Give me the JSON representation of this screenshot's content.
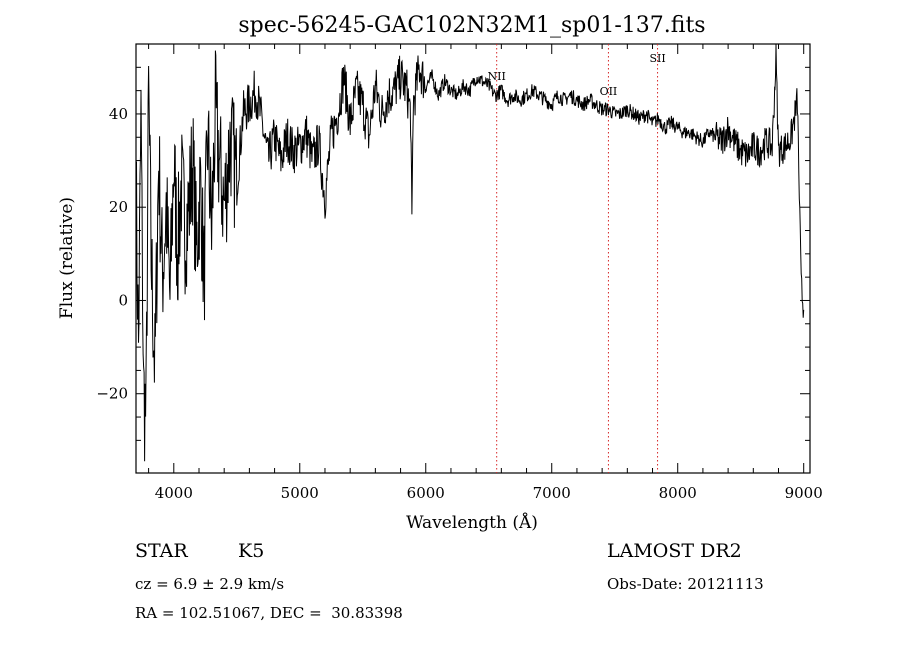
{
  "chart_data": {
    "type": "line",
    "title": "spec-56245-GAC102N32M1_sp01-137.fits",
    "xlabel": "Wavelength (Å)",
    "ylabel": "Flux (relative)",
    "xlim": [
      3700,
      9050
    ],
    "ylim": [
      -37,
      55
    ],
    "x_ticks": [
      4000,
      5000,
      6000,
      7000,
      8000,
      9000
    ],
    "x_tick_labels": [
      "4000",
      "5000",
      "6000",
      "7000",
      "8000",
      "9000"
    ],
    "y_ticks": [
      -20,
      0,
      20,
      40
    ],
    "y_tick_labels": [
      "−20",
      "0",
      "20",
      "40"
    ],
    "grid": false,
    "line_color": "#000000",
    "marker_color": "#d62728",
    "lines": [
      {
        "label": "NII",
        "x": 6563
      },
      {
        "label": "OII",
        "x": 7450
      },
      {
        "label": "SII",
        "x": 7840
      }
    ],
    "series": [
      {
        "x": [
          3700,
          3720,
          3740,
          3760,
          3780,
          3800,
          3820,
          3850,
          3880,
          3910,
          3940,
          3970,
          4000,
          4030,
          4060,
          4090,
          4120,
          4150,
          4180,
          4210,
          4240,
          4270,
          4300,
          4330,
          4360,
          4400,
          4450,
          4500,
          4550,
          4600,
          4650,
          4700,
          4750,
          4800,
          4850,
          4900,
          4950,
          5000,
          5050,
          5100,
          5150,
          5200,
          5250,
          5300,
          5350,
          5400,
          5450,
          5500,
          5550,
          5600,
          5650,
          5700,
          5750,
          5800,
          5850,
          5880,
          5890,
          5900,
          5950,
          6000,
          6050,
          6100,
          6150,
          6200,
          6250,
          6300,
          6350,
          6400,
          6450,
          6500,
          6550,
          6600,
          6650,
          6700,
          6750,
          6800,
          6850,
          6900,
          6950,
          7000,
          7050,
          7100,
          7150,
          7200,
          7250,
          7300,
          7350,
          7400,
          7450,
          7500,
          7550,
          7600,
          7650,
          7700,
          7750,
          7800,
          7850,
          7900,
          7950,
          8000,
          8050,
          8100,
          8150,
          8200,
          8250,
          8300,
          8350,
          8400,
          8450,
          8500,
          8550,
          8600,
          8650,
          8700,
          8750,
          8780,
          8800,
          8850,
          8900,
          8950,
          8980,
          9000
        ],
        "y": [
          25,
          -10,
          40,
          -20,
          -25,
          45,
          10,
          -15,
          30,
          5,
          20,
          0,
          30,
          10,
          25,
          15,
          20,
          30,
          10,
          25,
          5,
          35,
          15,
          40,
          30,
          20,
          35,
          25,
          40,
          42,
          45,
          38,
          30,
          35,
          30,
          35,
          32,
          33,
          36,
          30,
          34,
          22,
          35,
          40,
          48,
          38,
          45,
          42,
          35,
          46,
          40,
          44,
          45,
          48,
          45,
          40,
          15,
          42,
          50,
          46,
          48,
          44,
          47,
          45,
          44,
          46,
          45,
          48,
          47,
          46,
          44,
          45,
          43,
          44,
          43,
          44,
          45,
          44,
          43,
          42,
          44,
          43,
          44,
          43,
          42,
          43,
          42,
          41,
          41,
          40,
          40,
          41,
          40,
          39,
          40,
          38,
          39,
          37,
          38,
          37,
          36,
          36,
          35,
          34,
          36,
          35,
          34,
          37,
          34,
          32,
          31,
          33,
          32,
          34,
          33,
          52,
          32,
          33,
          35,
          43,
          3,
          -2
        ]
      }
    ]
  },
  "info": {
    "object_class": "STAR",
    "subclass": "K5",
    "survey": "LAMOST DR2",
    "redshift": "cz = 6.9 ± 2.9 km/s",
    "obs_date": "Obs-Date: 20121113",
    "coords": "RA = 102.51067, DEC =  30.83398"
  }
}
